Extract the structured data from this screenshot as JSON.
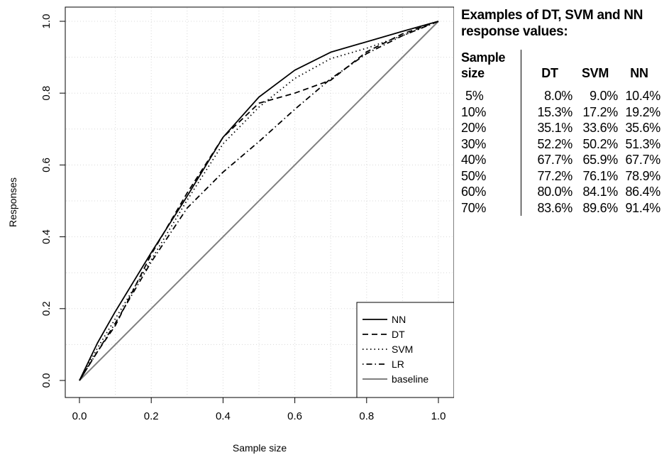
{
  "chart_data": {
    "type": "line",
    "xlabel": "Sample size",
    "ylabel": "Responses",
    "xlim": [
      0,
      1
    ],
    "ylim": [
      0,
      1
    ],
    "x_ticks": [
      "0.0",
      "0.2",
      "0.4",
      "0.6",
      "0.8",
      "1.0"
    ],
    "y_ticks": [
      "0.0",
      "0.2",
      "0.4",
      "0.6",
      "0.8",
      "1.0"
    ],
    "grid": true,
    "legend_position": "bottom-right",
    "series": [
      {
        "name": "NN",
        "style": "solid",
        "color": "#000000",
        "x": [
          0,
          0.05,
          0.1,
          0.2,
          0.3,
          0.4,
          0.5,
          0.6,
          0.7,
          0.8,
          0.9,
          1.0
        ],
        "y": [
          0,
          0.104,
          0.192,
          0.356,
          0.513,
          0.677,
          0.789,
          0.864,
          0.914,
          0.943,
          0.972,
          1.0
        ]
      },
      {
        "name": "DT",
        "style": "dashed",
        "color": "#000000",
        "x": [
          0,
          0.05,
          0.1,
          0.2,
          0.3,
          0.4,
          0.5,
          0.6,
          0.7,
          0.8,
          0.9,
          1.0
        ],
        "y": [
          0,
          0.08,
          0.153,
          0.351,
          0.522,
          0.677,
          0.772,
          0.8,
          0.836,
          0.915,
          0.965,
          1.0
        ]
      },
      {
        "name": "SVM",
        "style": "dotted",
        "color": "#000000",
        "x": [
          0,
          0.05,
          0.1,
          0.2,
          0.3,
          0.4,
          0.5,
          0.6,
          0.7,
          0.8,
          0.9,
          1.0
        ],
        "y": [
          0,
          0.09,
          0.172,
          0.336,
          0.502,
          0.659,
          0.761,
          0.841,
          0.896,
          0.925,
          0.96,
          1.0
        ]
      },
      {
        "name": "LR",
        "style": "dotdash",
        "color": "#000000",
        "x": [
          0,
          0.1,
          0.2,
          0.3,
          0.4,
          0.5,
          0.6,
          0.7,
          0.8,
          0.9,
          1.0
        ],
        "y": [
          0,
          0.16,
          0.33,
          0.48,
          0.58,
          0.665,
          0.755,
          0.84,
          0.91,
          0.96,
          1.0
        ]
      },
      {
        "name": "baseline",
        "style": "solid",
        "color": "#7f7f7f",
        "x": [
          0,
          1
        ],
        "y": [
          0,
          1
        ]
      }
    ]
  },
  "side_table": {
    "title_line1": "Examples of DT, SVM and NN",
    "title_line2": "response values:",
    "headers": [
      "Sample size",
      "DT",
      "SVM",
      "NN"
    ],
    "rows": [
      [
        "5%",
        "8.0%",
        "9.0%",
        "10.4%"
      ],
      [
        "10%",
        "15.3%",
        "17.2%",
        "19.2%"
      ],
      [
        "20%",
        "35.1%",
        "33.6%",
        "35.6%"
      ],
      [
        "30%",
        "52.2%",
        "50.2%",
        "51.3%"
      ],
      [
        "40%",
        "67.7%",
        "65.9%",
        "67.7%"
      ],
      [
        "50%",
        "77.2%",
        "76.1%",
        "78.9%"
      ],
      [
        "60%",
        "80.0%",
        "84.1%",
        "86.4%"
      ],
      [
        "70%",
        "83.6%",
        "89.6%",
        "91.4%"
      ]
    ]
  }
}
